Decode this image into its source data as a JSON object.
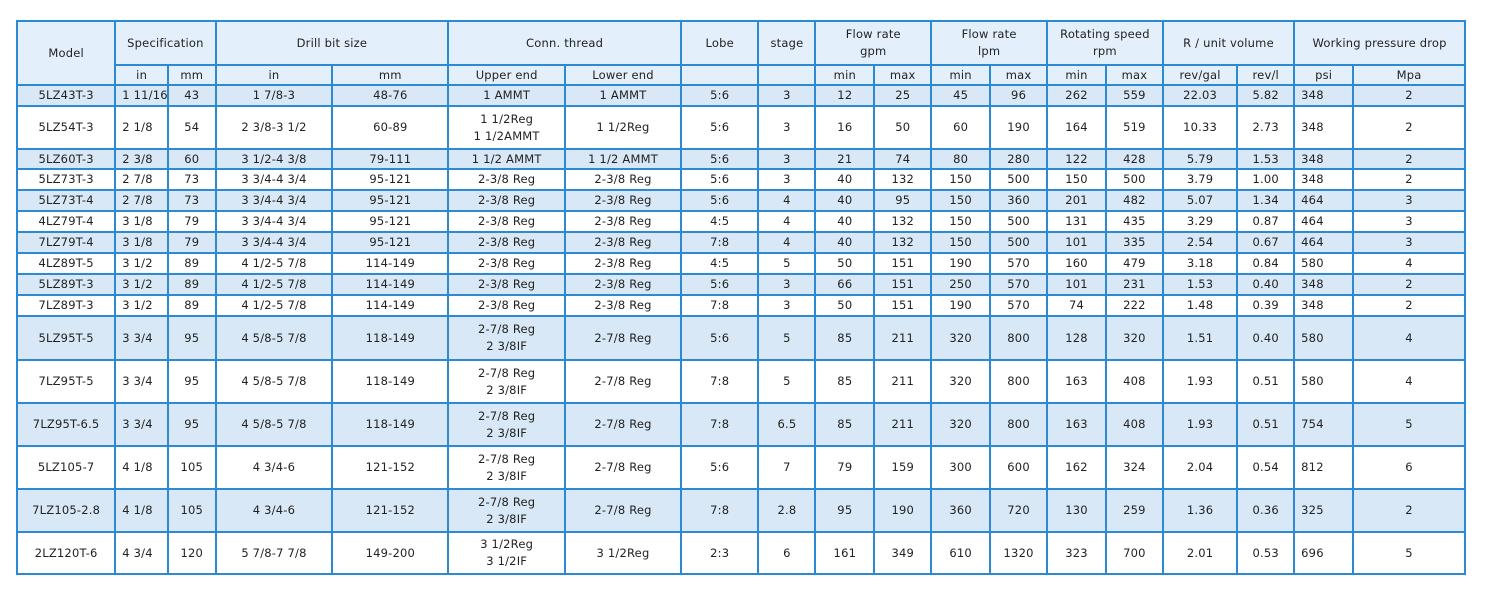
{
  "header": {
    "model": "Model",
    "specification": "Specification",
    "drill_bit_size": "Drill bit size",
    "conn_thread": "Conn. thread",
    "lobe": "Lobe",
    "stage": "stage",
    "flow_gpm": [
      "Flow rate",
      "gpm"
    ],
    "flow_lpm": [
      "Flow rate",
      "lpm"
    ],
    "rotating_speed": [
      "Rotating speed",
      "rpm"
    ],
    "unit_volume": "R / unit volume",
    "pressure_drop": "Working pressure drop",
    "sub": {
      "spec_in": "in",
      "spec_mm": "mm",
      "bit_in": "in",
      "bit_mm": "mm",
      "upper": "Upper end",
      "lower": "Lower end",
      "gpm_min": "min",
      "gpm_max": "max",
      "lpm_min": "min",
      "lpm_max": "max",
      "rpm_min": "min",
      "rpm_max": "max",
      "rev_gal": "rev/gal",
      "rev_l": "rev/l",
      "psi": "psi",
      "mpa": "Mpa"
    }
  },
  "rows": [
    {
      "model": "5LZ43T-3",
      "spec_in": "1 11/16",
      "spec_mm": "43",
      "bit_in": "1 7/8-3",
      "bit_mm": "48-76",
      "upper": [
        "1 AMMT"
      ],
      "lower": "1 AMMT",
      "lobe": "5:6",
      "stage": "3",
      "gpm_min": "12",
      "gpm_max": "25",
      "lpm_min": "45",
      "lpm_max": "96",
      "rpm_min": "262",
      "rpm_max": "559",
      "rev_gal": "22.03",
      "rev_l": "5.82",
      "psi": "348",
      "mpa": "2"
    },
    {
      "model": "5LZ54T-3",
      "spec_in": "2 1/8",
      "spec_mm": "54",
      "bit_in": "2 3/8-3 1/2",
      "bit_mm": "60-89",
      "upper": [
        "1 1/2Reg",
        "1 1/2AMMT"
      ],
      "lower": "1 1/2Reg",
      "lobe": "5:6",
      "stage": "3",
      "gpm_min": "16",
      "gpm_max": "50",
      "lpm_min": "60",
      "lpm_max": "190",
      "rpm_min": "164",
      "rpm_max": "519",
      "rev_gal": "10.33",
      "rev_l": "2.73",
      "psi": "348",
      "mpa": "2"
    },
    {
      "model": "5LZ60T-3",
      "spec_in": "2 3/8",
      "spec_mm": "60",
      "bit_in": "3 1/2-4 3/8",
      "bit_mm": "79-111",
      "upper": [
        "1 1/2 AMMT"
      ],
      "lower": "1 1/2 AMMT",
      "lobe": "5:6",
      "stage": "3",
      "gpm_min": "21",
      "gpm_max": "74",
      "lpm_min": "80",
      "lpm_max": "280",
      "rpm_min": "122",
      "rpm_max": "428",
      "rev_gal": "5.79",
      "rev_l": "1.53",
      "psi": "348",
      "mpa": "2"
    },
    {
      "model": "5LZ73T-3",
      "spec_in": "2 7/8",
      "spec_mm": "73",
      "bit_in": "3 3/4-4 3/4",
      "bit_mm": "95-121",
      "upper": [
        "2-3/8 Reg"
      ],
      "lower": "2-3/8 Reg",
      "lobe": "5:6",
      "stage": "3",
      "gpm_min": "40",
      "gpm_max": "132",
      "lpm_min": "150",
      "lpm_max": "500",
      "rpm_min": "150",
      "rpm_max": "500",
      "rev_gal": "3.79",
      "rev_l": "1.00",
      "psi": "348",
      "mpa": "2"
    },
    {
      "model": "5LZ73T-4",
      "spec_in": "2 7/8",
      "spec_mm": "73",
      "bit_in": "3 3/4-4 3/4",
      "bit_mm": "95-121",
      "upper": [
        "2-3/8 Reg"
      ],
      "lower": "2-3/8 Reg",
      "lobe": "5:6",
      "stage": "4",
      "gpm_min": "40",
      "gpm_max": "95",
      "lpm_min": "150",
      "lpm_max": "360",
      "rpm_min": "201",
      "rpm_max": "482",
      "rev_gal": "5.07",
      "rev_l": "1.34",
      "psi": "464",
      "mpa": "3"
    },
    {
      "model": "4LZ79T-4",
      "spec_in": "3 1/8",
      "spec_mm": "79",
      "bit_in": "3 3/4-4 3/4",
      "bit_mm": "95-121",
      "upper": [
        "2-3/8 Reg"
      ],
      "lower": "2-3/8 Reg",
      "lobe": "4:5",
      "stage": "4",
      "gpm_min": "40",
      "gpm_max": "132",
      "lpm_min": "150",
      "lpm_max": "500",
      "rpm_min": "131",
      "rpm_max": "435",
      "rev_gal": "3.29",
      "rev_l": "0.87",
      "psi": "464",
      "mpa": "3"
    },
    {
      "model": "7LZ79T-4",
      "spec_in": "3 1/8",
      "spec_mm": "79",
      "bit_in": "3 3/4-4 3/4",
      "bit_mm": "95-121",
      "upper": [
        "2-3/8 Reg"
      ],
      "lower": "2-3/8 Reg",
      "lobe": "7:8",
      "stage": "4",
      "gpm_min": "40",
      "gpm_max": "132",
      "lpm_min": "150",
      "lpm_max": "500",
      "rpm_min": "101",
      "rpm_max": "335",
      "rev_gal": "2.54",
      "rev_l": "0.67",
      "psi": "464",
      "mpa": "3"
    },
    {
      "model": "4LZ89T-5",
      "spec_in": "3 1/2",
      "spec_mm": "89",
      "bit_in": "4 1/2-5 7/8",
      "bit_mm": "114-149",
      "upper": [
        "2-3/8 Reg"
      ],
      "lower": "2-3/8 Reg",
      "lobe": "4:5",
      "stage": "5",
      "gpm_min": "50",
      "gpm_max": "151",
      "lpm_min": "190",
      "lpm_max": "570",
      "rpm_min": "160",
      "rpm_max": "479",
      "rev_gal": "3.18",
      "rev_l": "0.84",
      "psi": "580",
      "mpa": "4"
    },
    {
      "model": "5LZ89T-3",
      "spec_in": "3 1/2",
      "spec_mm": "89",
      "bit_in": "4 1/2-5 7/8",
      "bit_mm": "114-149",
      "upper": [
        "2-3/8 Reg"
      ],
      "lower": "2-3/8 Reg",
      "lobe": "5:6",
      "stage": "3",
      "gpm_min": "66",
      "gpm_max": "151",
      "lpm_min": "250",
      "lpm_max": "570",
      "rpm_min": "101",
      "rpm_max": "231",
      "rev_gal": "1.53",
      "rev_l": "0.40",
      "psi": "348",
      "mpa": "2"
    },
    {
      "model": "7LZ89T-3",
      "spec_in": "3 1/2",
      "spec_mm": "89",
      "bit_in": "4 1/2-5 7/8",
      "bit_mm": "114-149",
      "upper": [
        "2-3/8 Reg"
      ],
      "lower": "2-3/8 Reg",
      "lobe": "7:8",
      "stage": "3",
      "gpm_min": "50",
      "gpm_max": "151",
      "lpm_min": "190",
      "lpm_max": "570",
      "rpm_min": "74",
      "rpm_max": "222",
      "rev_gal": "1.48",
      "rev_l": "0.39",
      "psi": "348",
      "mpa": "2"
    },
    {
      "model": "5LZ95T-5",
      "spec_in": "3 3/4",
      "spec_mm": "95",
      "bit_in": "4 5/8-5 7/8",
      "bit_mm": "118-149",
      "upper": [
        "2-7/8 Reg",
        "2 3/8IF"
      ],
      "lower": "2-7/8 Reg",
      "lobe": "5:6",
      "stage": "5",
      "gpm_min": "85",
      "gpm_max": "211",
      "lpm_min": "320",
      "lpm_max": "800",
      "rpm_min": "128",
      "rpm_max": "320",
      "rev_gal": "1.51",
      "rev_l": "0.40",
      "psi": "580",
      "mpa": "4"
    },
    {
      "model": "7LZ95T-5",
      "spec_in": "3 3/4",
      "spec_mm": "95",
      "bit_in": "4 5/8-5 7/8",
      "bit_mm": "118-149",
      "upper": [
        "2-7/8 Reg",
        "2 3/8IF"
      ],
      "lower": "2-7/8 Reg",
      "lobe": "7:8",
      "stage": "5",
      "gpm_min": "85",
      "gpm_max": "211",
      "lpm_min": "320",
      "lpm_max": "800",
      "rpm_min": "163",
      "rpm_max": "408",
      "rev_gal": "1.93",
      "rev_l": "0.51",
      "psi": "580",
      "mpa": "4"
    },
    {
      "model": "7LZ95T-6.5",
      "spec_in": "3 3/4",
      "spec_mm": "95",
      "bit_in": "4 5/8-5 7/8",
      "bit_mm": "118-149",
      "upper": [
        "2-7/8 Reg",
        "2 3/8IF"
      ],
      "lower": "2-7/8 Reg",
      "lobe": "7:8",
      "stage": "6.5",
      "gpm_min": "85",
      "gpm_max": "211",
      "lpm_min": "320",
      "lpm_max": "800",
      "rpm_min": "163",
      "rpm_max": "408",
      "rev_gal": "1.93",
      "rev_l": "0.51",
      "psi": "754",
      "mpa": "5"
    },
    {
      "model": "5LZ105-7",
      "spec_in": "4 1/8",
      "spec_mm": "105",
      "bit_in": "4 3/4-6",
      "bit_mm": "121-152",
      "upper": [
        "2-7/8 Reg",
        "2 3/8IF"
      ],
      "lower": "2-7/8 Reg",
      "lobe": "5:6",
      "stage": "7",
      "gpm_min": "79",
      "gpm_max": "159",
      "lpm_min": "300",
      "lpm_max": "600",
      "rpm_min": "162",
      "rpm_max": "324",
      "rev_gal": "2.04",
      "rev_l": "0.54",
      "psi": "812",
      "mpa": "6"
    },
    {
      "model": "7LZ105-2.8",
      "spec_in": "4 1/8",
      "spec_mm": "105",
      "bit_in": "4 3/4-6",
      "bit_mm": "121-152",
      "upper": [
        "2-7/8 Reg",
        "2 3/8IF"
      ],
      "lower": "2-7/8 Reg",
      "lobe": "7:8",
      "stage": "2.8",
      "gpm_min": "95",
      "gpm_max": "190",
      "lpm_min": "360",
      "lpm_max": "720",
      "rpm_min": "130",
      "rpm_max": "259",
      "rev_gal": "1.36",
      "rev_l": "0.36",
      "psi": "325",
      "mpa": "2"
    },
    {
      "model": "2LZ120T-6",
      "spec_in": "4 3/4",
      "spec_mm": "120",
      "bit_in": "5 7/8-7 7/8",
      "bit_mm": "149-200",
      "upper": [
        "3 1/2Reg",
        "3 1/2IF"
      ],
      "lower": "3 1/2Reg",
      "lobe": "2:3",
      "stage": "6",
      "gpm_min": "161",
      "gpm_max": "349",
      "lpm_min": "610",
      "lpm_max": "1320",
      "rpm_min": "323",
      "rpm_max": "700",
      "rev_gal": "2.01",
      "rev_l": "0.53",
      "psi": "696",
      "mpa": "5"
    }
  ]
}
